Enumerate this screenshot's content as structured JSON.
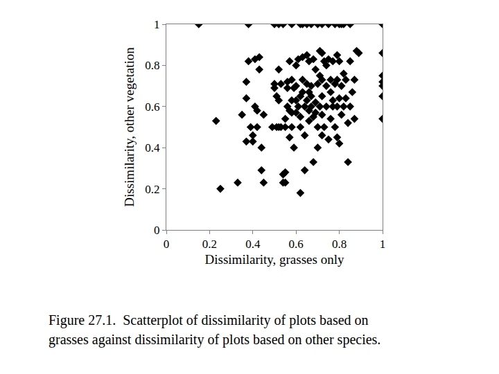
{
  "chart_data": {
    "type": "scatter",
    "x_label": "Dissimilarity, grasses only",
    "y_label": "Dissimilarity, other vegetation",
    "annotations": [
      "Figure 27.1.  Scatterplot of dissimilarity of plots based on",
      "grasses against dissimilarity of plots based on other species."
    ],
    "color": "#000000",
    "marker": "diamond",
    "grid": false,
    "xlim": [
      0,
      1
    ],
    "ylim": [
      0,
      1
    ],
    "xticks": [
      0,
      0.2,
      0.4,
      0.6,
      0.8,
      1
    ],
    "yticks": [
      0,
      0.2,
      0.4,
      0.6,
      0.8,
      1
    ],
    "x": [
      0.15,
      0.38,
      0.5,
      0.52,
      0.54,
      0.58,
      0.62,
      0.63,
      0.65,
      0.67,
      0.7,
      0.72,
      0.75,
      0.78,
      0.8,
      0.81,
      0.82,
      0.85,
      1.0,
      1.0,
      1.0,
      1.0,
      1.0,
      1.0,
      1.0,
      0.23,
      0.25,
      0.33,
      0.35,
      0.37,
      0.37,
      0.37,
      0.38,
      0.39,
      0.4,
      0.4,
      0.41,
      0.41,
      0.42,
      0.42,
      0.43,
      0.43,
      0.44,
      0.44,
      0.45,
      0.45,
      0.49,
      0.5,
      0.5,
      0.51,
      0.51,
      0.52,
      0.52,
      0.52,
      0.53,
      0.53,
      0.54,
      0.54,
      0.55,
      0.55,
      0.55,
      0.55,
      0.56,
      0.56,
      0.56,
      0.57,
      0.57,
      0.57,
      0.58,
      0.58,
      0.58,
      0.59,
      0.59,
      0.6,
      0.6,
      0.6,
      0.61,
      0.61,
      0.62,
      0.62,
      0.62,
      0.63,
      0.63,
      0.63,
      0.64,
      0.64,
      0.64,
      0.65,
      0.65,
      0.65,
      0.66,
      0.66,
      0.66,
      0.67,
      0.67,
      0.67,
      0.68,
      0.68,
      0.68,
      0.69,
      0.69,
      0.7,
      0.7,
      0.7,
      0.71,
      0.71,
      0.71,
      0.72,
      0.72,
      0.72,
      0.72,
      0.72,
      0.73,
      0.73,
      0.74,
      0.74,
      0.74,
      0.75,
      0.76,
      0.76,
      0.76,
      0.77,
      0.77,
      0.78,
      0.78,
      0.79,
      0.79,
      0.79,
      0.79,
      0.8,
      0.8,
      0.8,
      0.81,
      0.81,
      0.82,
      0.82,
      0.83,
      0.84,
      0.84,
      0.85,
      0.85,
      0.86,
      0.87,
      0.87,
      0.88,
      0.89,
      0.83,
      0.75,
      0.62,
      0.6,
      0.58,
      0.69,
      0.66,
      0.77
    ],
    "y": [
      1,
      1,
      1,
      1,
      1,
      1,
      1,
      1,
      1,
      1,
      1,
      1,
      1,
      1,
      1,
      1,
      1,
      1,
      1,
      0.86,
      0.75,
      0.72,
      0.7,
      0.65,
      0.54,
      0.53,
      0.2,
      0.23,
      0.56,
      0.43,
      0.64,
      0.72,
      0.82,
      0.5,
      0.43,
      0.46,
      0.83,
      0.6,
      0.5,
      0.58,
      0.84,
      0.78,
      0.29,
      0.4,
      0.23,
      0.56,
      0.5,
      0.71,
      0.69,
      0.65,
      0.5,
      0.78,
      0.63,
      0.5,
      0.71,
      0.5,
      0.27,
      0.23,
      0.28,
      0.23,
      0.54,
      0.5,
      0.72,
      0.69,
      0.6,
      0.58,
      0.82,
      0.45,
      0.73,
      0.63,
      0.5,
      0.4,
      0.69,
      0.57,
      0.63,
      0.8,
      0.6,
      0.83,
      0.5,
      0.18,
      0.55,
      0.67,
      0.73,
      0.84,
      0.6,
      0.46,
      0.29,
      0.85,
      0.71,
      0.63,
      0.58,
      0.53,
      0.82,
      0.6,
      0.65,
      0.7,
      0.83,
      0.33,
      0.55,
      0.62,
      0.78,
      0.71,
      0.4,
      0.5,
      0.87,
      0.75,
      0.6,
      0.86,
      0.73,
      0.65,
      0.56,
      0.46,
      0.82,
      0.5,
      0.8,
      0.7,
      0.6,
      0.44,
      0.73,
      0.67,
      0.54,
      0.6,
      0.82,
      0.5,
      0.71,
      0.85,
      0.73,
      0.6,
      0.45,
      0.82,
      0.64,
      0.42,
      0.7,
      0.56,
      0.6,
      0.76,
      0.73,
      0.33,
      0.52,
      0.82,
      0.6,
      0.67,
      0.73,
      0.54,
      0.87,
      0.86,
      0.64,
      0.83,
      0.65,
      0.7,
      0.57,
      0.57,
      0.67,
      0.63
    ]
  }
}
